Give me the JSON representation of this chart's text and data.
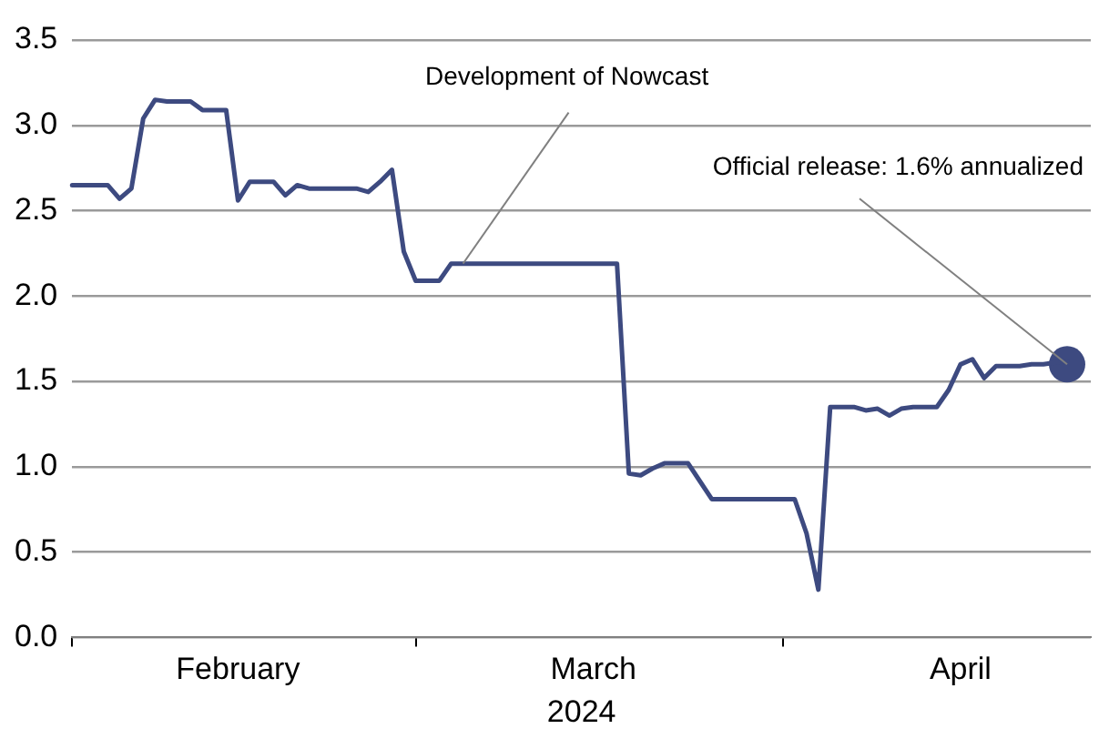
{
  "chart_data": {
    "type": "line",
    "xlabel": "2024",
    "xlim": [
      "2024-02-01",
      "2024-04-27"
    ],
    "xticks": [
      {
        "value": "2024-02-01",
        "label": null
      },
      {
        "value": "2024-02-15",
        "label": "February"
      },
      {
        "value": "2024-03-01",
        "label": null
      },
      {
        "value": "2024-03-16",
        "label": "March"
      },
      {
        "value": "2024-04-01",
        "label": null
      },
      {
        "value": "2024-04-16",
        "label": "April"
      }
    ],
    "ylim": [
      0,
      3.5
    ],
    "yticks": [
      {
        "value": 0,
        "label": "0.0"
      },
      0.5,
      {
        "value": 1,
        "label": "1.0"
      },
      1.5,
      {
        "value": 2,
        "label": "2.0"
      },
      2.5,
      {
        "value": 3,
        "label": "3.0"
      },
      3.5
    ],
    "grid": "y",
    "legend": false,
    "line_style": "solid",
    "series": [
      {
        "marker": "none",
        "color": "#3d4a80",
        "x": [
          "2024-02-01",
          "2024-02-04",
          "2024-02-05",
          "2024-02-06",
          "2024-02-07",
          "2024-02-08",
          "2024-02-09",
          "2024-02-11",
          "2024-02-12",
          "2024-02-14",
          "2024-02-15",
          "2024-02-16",
          "2024-02-18",
          "2024-02-19",
          "2024-02-20",
          "2024-02-21",
          "2024-02-25",
          "2024-02-26",
          "2024-02-27",
          "2024-02-28",
          "2024-02-29",
          "2024-03-01",
          "2024-03-03",
          "2024-03-04",
          "2024-03-18",
          "2024-03-19",
          "2024-03-20",
          "2024-03-21",
          "2024-03-22",
          "2024-03-24",
          "2024-03-26",
          "2024-04-02",
          "2024-04-03",
          "2024-04-04",
          "2024-04-05",
          "2024-04-07",
          "2024-04-08",
          "2024-04-09",
          "2024-04-10",
          "2024-04-11",
          "2024-04-12",
          "2024-04-14",
          "2024-04-15",
          "2024-04-16",
          "2024-04-17",
          "2024-04-18",
          "2024-04-19",
          "2024-04-21",
          "2024-04-22",
          "2024-04-23",
          "2024-04-25"
        ],
        "values": [
          2.65,
          2.65,
          2.57,
          2.63,
          3.04,
          3.15,
          3.14,
          3.14,
          3.09,
          3.09,
          2.56,
          2.67,
          2.67,
          2.59,
          2.65,
          2.63,
          2.63,
          2.61,
          2.67,
          2.74,
          2.26,
          2.09,
          2.09,
          2.19,
          2.19,
          0.96,
          0.95,
          0.99,
          1.02,
          1.02,
          0.81,
          0.81,
          0.61,
          0.28,
          1.35,
          1.35,
          1.33,
          1.34,
          1.3,
          1.34,
          1.35,
          1.35,
          1.45,
          1.6,
          1.63,
          1.52,
          1.59,
          1.59,
          1.6,
          1.6,
          1.62
        ]
      },
      {
        "type": "scatter",
        "marker": "circle",
        "color": "#3d4a80",
        "x": [
          "2024-04-25"
        ],
        "values": [
          1.6
        ]
      }
    ],
    "annotations": [
      {
        "text": "Development of Nowcast",
        "x": "2024-03-05",
        "y": 2.19
      },
      {
        "text": "Official release: 1.6% annualized",
        "x": "2024-04-25",
        "y": 1.6
      }
    ]
  }
}
